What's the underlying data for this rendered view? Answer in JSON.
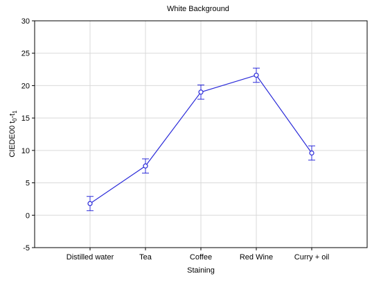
{
  "chart_data": {
    "type": "line",
    "title": "White Background",
    "xlabel": "Staining",
    "ylabel": "CIEDE00 t",
    "ylabel_sub_1": "0",
    "ylabel_mid": "-t",
    "ylabel_sub_2": "1",
    "categories": [
      "Distilled water",
      "Tea",
      "Coffee",
      "Red Wine",
      "Curry + oil"
    ],
    "series": [
      {
        "values": [
          1.8,
          7.6,
          19.0,
          21.6,
          9.6
        ],
        "error_low": [
          0.7,
          6.5,
          17.9,
          20.5,
          8.5
        ],
        "error_high": [
          2.9,
          8.7,
          20.1,
          22.7,
          10.7
        ]
      }
    ],
    "ylim": [
      -5,
      30
    ],
    "yticks": [
      -5,
      0,
      5,
      10,
      15,
      20,
      25,
      30
    ],
    "ytick_labels": [
      "-5",
      "0",
      "5",
      "10",
      "15",
      "20",
      "25",
      "30"
    ],
    "grid": true,
    "colors": {
      "series": "#2b2bd9",
      "grid": "#d9d9d9",
      "frame": "#000000"
    }
  }
}
